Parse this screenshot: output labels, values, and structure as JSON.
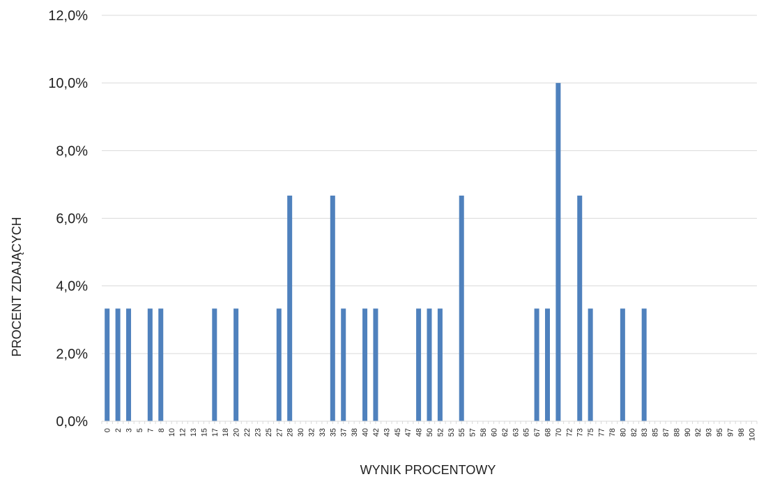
{
  "chart_data": {
    "type": "bar",
    "title": "",
    "xlabel": "WYNIK PROCENTOWY",
    "ylabel": "PROCENT ZDAJĄCYCH",
    "ylim": [
      0,
      12
    ],
    "y_ticks": [
      "0,0%",
      "2,0%",
      "4,0%",
      "6,0%",
      "8,0%",
      "10,0%",
      "12,0%"
    ],
    "y_tick_values": [
      0,
      2,
      4,
      6,
      8,
      10,
      12
    ],
    "grid": true,
    "legend": "none",
    "bar_color": "#4f81bd",
    "x_ticks": [
      "0",
      "2",
      "3",
      "5",
      "7",
      "8",
      "10",
      "12",
      "13",
      "15",
      "17",
      "18",
      "20",
      "22",
      "23",
      "25",
      "27",
      "28",
      "30",
      "32",
      "33",
      "35",
      "37",
      "38",
      "40",
      "42",
      "43",
      "45",
      "47",
      "48",
      "50",
      "52",
      "53",
      "55",
      "57",
      "58",
      "60",
      "62",
      "63",
      "65",
      "67",
      "68",
      "70",
      "72",
      "73",
      "75",
      "77",
      "78",
      "80",
      "82",
      "83",
      "85",
      "87",
      "88",
      "90",
      "92",
      "93",
      "95",
      "97",
      "98",
      "100"
    ],
    "categories": [
      "0",
      "2",
      "3",
      "5",
      "7",
      "8",
      "10",
      "12",
      "13",
      "15",
      "17",
      "18",
      "20",
      "22",
      "23",
      "25",
      "27",
      "28",
      "30",
      "32",
      "33",
      "35",
      "37",
      "38",
      "40",
      "42",
      "43",
      "45",
      "47",
      "48",
      "50",
      "52",
      "53",
      "55",
      "57",
      "58",
      "60",
      "62",
      "63",
      "65",
      "67",
      "68",
      "70",
      "72",
      "73",
      "75",
      "77",
      "78",
      "80",
      "82",
      "83",
      "85",
      "87",
      "88",
      "90",
      "92",
      "93",
      "95",
      "97",
      "98",
      "100"
    ],
    "values": [
      3.33,
      3.33,
      3.33,
      0,
      3.33,
      3.33,
      0,
      0,
      0,
      0,
      3.33,
      0,
      3.33,
      0,
      0,
      0,
      3.33,
      6.67,
      0,
      0,
      0,
      6.67,
      3.33,
      0,
      3.33,
      3.33,
      0,
      0,
      0,
      3.33,
      3.33,
      3.33,
      0,
      6.67,
      0,
      0,
      0,
      0,
      0,
      0,
      3.33,
      3.33,
      10,
      0,
      6.67,
      3.33,
      0,
      0,
      3.33,
      0,
      3.33,
      0,
      0,
      0,
      0,
      0,
      0,
      0,
      0,
      0,
      0
    ]
  }
}
